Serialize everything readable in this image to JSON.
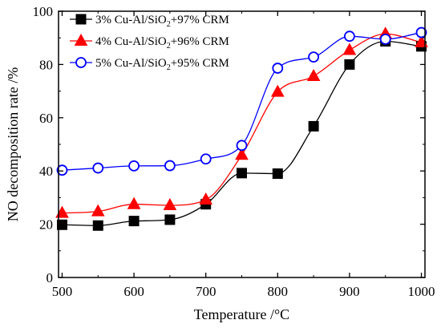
{
  "chart_data": {
    "type": "line",
    "title": "",
    "xlabel": "Temperature /°C",
    "ylabel": "NO decomposition rate /%",
    "xlim": [
      495,
      1005
    ],
    "ylim": [
      0,
      100
    ],
    "xticks": [
      500,
      600,
      700,
      800,
      900,
      1000
    ],
    "yticks": [
      0,
      20,
      40,
      60,
      80,
      100
    ],
    "grid": false,
    "legend_position": "top-left",
    "x": [
      500,
      550,
      600,
      650,
      700,
      750,
      800,
      850,
      900,
      950,
      1000
    ],
    "series": [
      {
        "name_parts": [
          "3% Cu-Al/SiO",
          "2",
          "+97% CRM"
        ],
        "marker": "square",
        "color": "#000000",
        "fill": "#000000",
        "values": [
          19.8,
          19.5,
          21.2,
          21.7,
          27.5,
          39.2,
          39.0,
          56.8,
          80.0,
          88.7,
          86.8
        ]
      },
      {
        "name_parts": [
          "4% Cu-Al/SiO",
          "2",
          "+96% CRM"
        ],
        "marker": "triangle",
        "color": "#ff0000",
        "fill": "#ff0000",
        "values": [
          24.2,
          24.8,
          27.5,
          27.1,
          29.2,
          46.0,
          69.7,
          75.6,
          85.4,
          91.5,
          88.3
        ]
      },
      {
        "name_parts": [
          "5% Cu-Al/SiO",
          "2",
          "+95% CRM"
        ],
        "marker": "circle-open",
        "color": "#0000ff",
        "fill": "#ffffff",
        "values": [
          40.3,
          41.1,
          41.9,
          42.0,
          44.5,
          49.6,
          78.6,
          82.8,
          90.6,
          89.5,
          92.0
        ]
      }
    ]
  }
}
